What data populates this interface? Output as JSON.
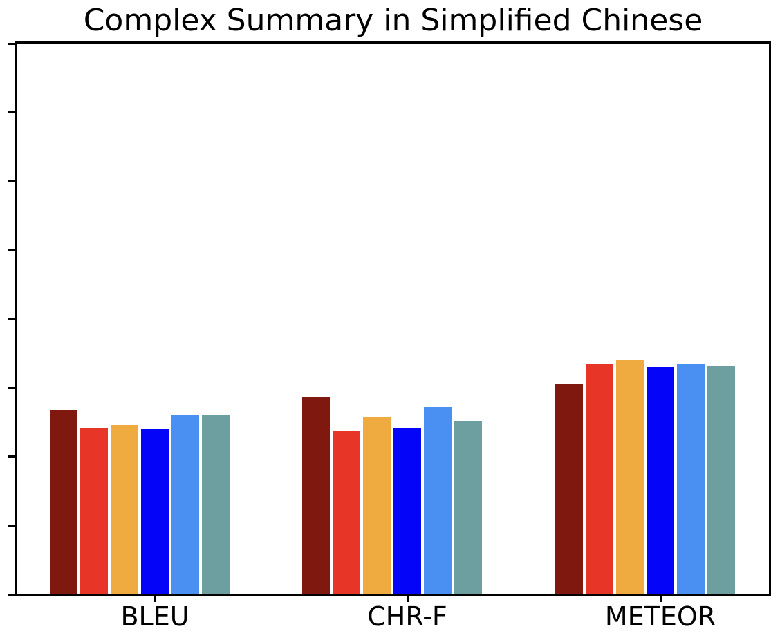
{
  "figure": {
    "background_color": "#FFFFFF",
    "axis_color": "#000000",
    "text_color": "#000000"
  },
  "chart_data": {
    "type": "bar",
    "title": "Complex Summary in Simplified Chinese",
    "categories": [
      "BLEU",
      "CHR-F",
      "METEOR"
    ],
    "series": [
      {
        "name": "dark-red",
        "color": "#7F1910",
        "values": [
          0.134,
          0.143,
          0.153
        ]
      },
      {
        "name": "red",
        "color": "#E73528",
        "values": [
          0.121,
          0.119,
          0.167
        ]
      },
      {
        "name": "orange",
        "color": "#F0AB40",
        "values": [
          0.123,
          0.129,
          0.17
        ]
      },
      {
        "name": "blue",
        "color": "#0404F8",
        "values": [
          0.12,
          0.121,
          0.165
        ]
      },
      {
        "name": "cornflower-blue",
        "color": "#4A90F3",
        "values": [
          0.13,
          0.136,
          0.167
        ]
      },
      {
        "name": "cadet-blue",
        "color": "#6D9FA0",
        "values": [
          0.13,
          0.126,
          0.166
        ]
      }
    ],
    "xlabel": "",
    "ylabel": "",
    "ylim": [
      0,
      0.4
    ],
    "ytick_interval": 0.05,
    "ytick_labels_shown": false,
    "xtick_labels": [
      "BLEU",
      "CHR-F",
      "METEOR"
    ],
    "legend": "none",
    "grid": false
  }
}
